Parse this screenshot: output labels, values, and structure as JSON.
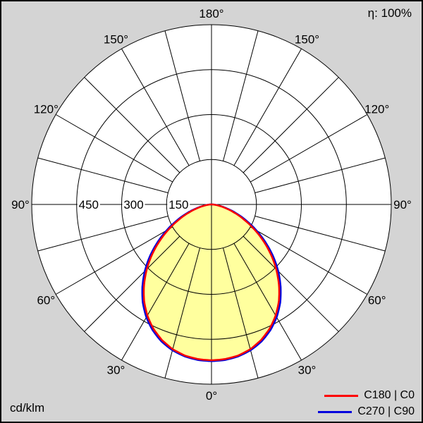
{
  "page": {
    "background": "#d4d4d4",
    "border_color": "#000000"
  },
  "chart_data": {
    "type": "polar-intensity",
    "efficiency_label": "η: 100%",
    "unit_label": "cd/klm",
    "radial_ticks": [
      150,
      300,
      450
    ],
    "radial_max": 600,
    "angle_labels": [
      0,
      30,
      60,
      90,
      120,
      150,
      180
    ],
    "grid_step_deg": 15,
    "grid_color": "#000000",
    "fill_color": "#ffff9e",
    "legend_position": "bottom-right",
    "series": [
      {
        "name": "C180 | C0",
        "color": "#ff0000",
        "gamma_step": 5,
        "gamma_range": [
          0,
          90
        ],
        "values": [
          520,
          518,
          512,
          500,
          482,
          458,
          428,
          392,
          350,
          305,
          258,
          210,
          163,
          120,
          82,
          50,
          26,
          10,
          3
        ]
      },
      {
        "name": "C270 | C90",
        "color": "#0000dd",
        "gamma_step": 5,
        "gamma_range": [
          0,
          90
        ],
        "values": [
          523,
          521,
          515,
          504,
          487,
          464,
          435,
          400,
          359,
          315,
          268,
          220,
          173,
          129,
          90,
          56,
          30,
          13,
          4
        ]
      }
    ]
  }
}
